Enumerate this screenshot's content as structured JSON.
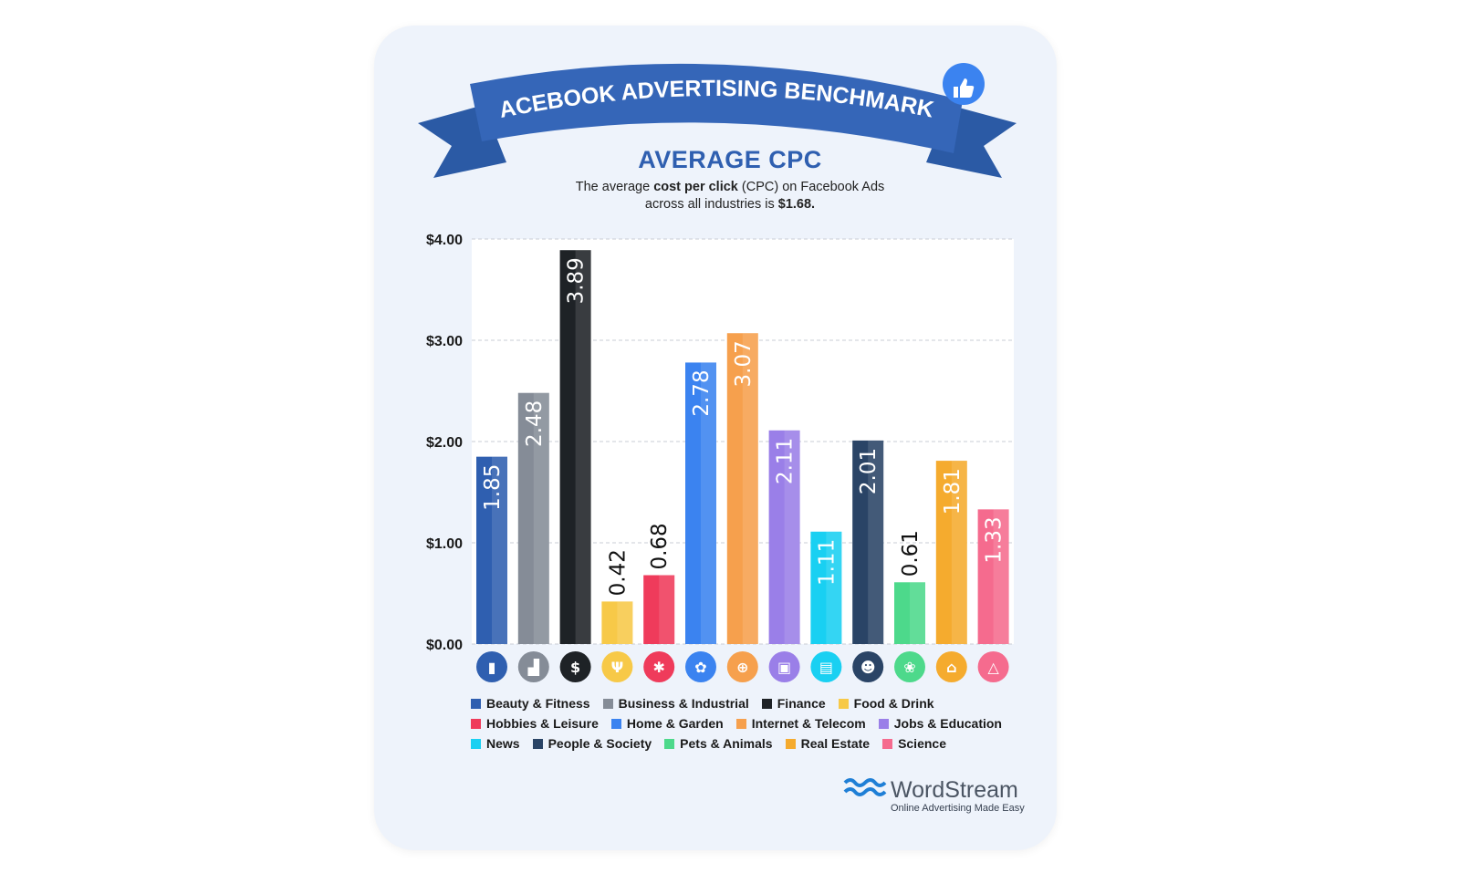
{
  "header": {
    "banner_title": "FACEBOOK ADVERTISING BENCHMARKS",
    "subtitle": "AVERAGE CPC",
    "desc_line1_pre": "The average ",
    "desc_line1_bold": "cost per click",
    "desc_line1_post": " (CPC) on Facebook Ads",
    "desc_line2_pre": "across all industries is ",
    "desc_line2_bold": "$1.68."
  },
  "chart_data": {
    "type": "bar",
    "title": "AVERAGE CPC",
    "ylabel": "",
    "xlabel": "",
    "ylim": [
      0,
      4
    ],
    "yticks": [
      "$0.00",
      "$1.00",
      "$2.00",
      "$3.00",
      "$4.00"
    ],
    "grid": true,
    "legend_placement": "bottom",
    "categories": [
      "Beauty & Fitness",
      "Business & Industrial",
      "Finance",
      "Food & Drink",
      "Hobbies & Leisure",
      "Home & Garden",
      "Internet & Telecom",
      "Jobs & Education",
      "News",
      "People & Society",
      "Pets & Animals",
      "Real Estate",
      "Science"
    ],
    "values": [
      1.85,
      2.48,
      3.89,
      0.42,
      0.68,
      2.78,
      3.07,
      2.11,
      1.11,
      2.01,
      0.61,
      1.81,
      1.33
    ],
    "labels": [
      "1.85",
      "2.48",
      "3.89",
      "0.42",
      "0.68",
      "2.78",
      "3.07",
      "2.11",
      "1.11",
      "2.01",
      "0.61",
      "1.81",
      "1.33"
    ],
    "colors": [
      "#2f5fb0",
      "#858c97",
      "#1e2226",
      "#f7c948",
      "#ef3b5b",
      "#3b83f0",
      "#f6a04d",
      "#9a7fe8",
      "#19d0f2",
      "#2a4466",
      "#4dd98b",
      "#f5ab2e",
      "#f56b8e"
    ],
    "icons": [
      "lipstick-icon",
      "factory-icon",
      "dollar-cycle-icon",
      "fork-knife-icon",
      "puzzle-icon",
      "flower-icon",
      "globe-icon",
      "briefcase-icon",
      "newspaper-icon",
      "people-icon",
      "paw-icon",
      "house-icon",
      "flask-icon"
    ],
    "icon_glyphs": [
      "▮",
      "▟",
      "$",
      "Ψ",
      "✱",
      "✿",
      "⊕",
      "▣",
      "▤",
      "☻",
      "❀",
      "⌂",
      "△"
    ]
  },
  "branding": {
    "name": "WordStream",
    "tagline": "Online Advertising Made Easy",
    "thumbs_icon": "thumbs-up-icon"
  }
}
